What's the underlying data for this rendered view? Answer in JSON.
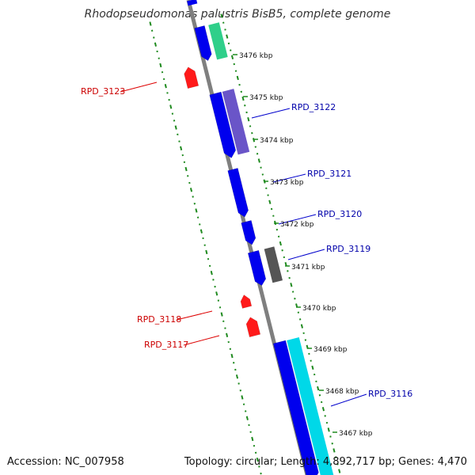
{
  "title": "Rhodopseudomonas palustris BisB5, complete genome",
  "accession": "Accession: NC_007958",
  "summary": "Topology: circular; Length: 4,892,717 bp; Genes: 4,470",
  "colors": {
    "backbone": "#7f7f7f",
    "tick_dots": "#1f8a1f",
    "forward_cds": "#0000ee",
    "reverse_gene": "#ff0000",
    "forward_label": "#0000aa",
    "reverse_label": "#cc0000"
  },
  "kbp_labels": [
    "3476 kbp",
    "3475 kbp",
    "3474 kbp",
    "3473 kbp",
    "3472 kbp",
    "3471 kbp",
    "3470 kbp",
    "3469 kbp",
    "3468 kbp",
    "3467 kbp"
  ],
  "gene_labels": [
    {
      "text": "RPD_3123",
      "strand": "reverse"
    },
    {
      "text": "RPD_3122",
      "strand": "forward"
    },
    {
      "text": "RPD_3121",
      "strand": "forward"
    },
    {
      "text": "RPD_3120",
      "strand": "forward"
    },
    {
      "text": "RPD_3119",
      "strand": "forward"
    },
    {
      "text": "RPD_3118",
      "strand": "reverse"
    },
    {
      "text": "RPD_3117",
      "strand": "reverse"
    },
    {
      "text": "RPD_3116",
      "strand": "forward"
    }
  ]
}
